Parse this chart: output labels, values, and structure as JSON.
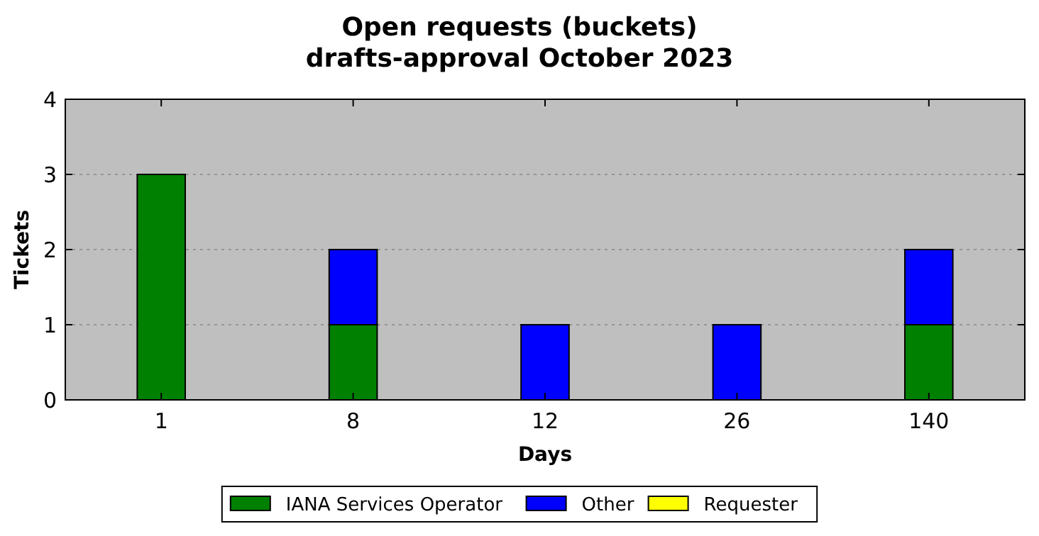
{
  "chart_data": {
    "type": "bar",
    "title": "Open requests (buckets)",
    "subtitle": "drafts-approval October 2023",
    "xlabel": "Days",
    "ylabel": "Tickets",
    "categories": [
      "1",
      "8",
      "12",
      "26",
      "140"
    ],
    "stacked": true,
    "series": [
      {
        "name": "IANA Services Operator",
        "color": "#008000",
        "values": [
          3,
          1,
          0,
          0,
          1
        ]
      },
      {
        "name": "Other",
        "color": "#0000ff",
        "values": [
          0,
          1,
          1,
          1,
          1
        ]
      },
      {
        "name": "Requester",
        "color": "#ffff00",
        "values": [
          0,
          0,
          0,
          0,
          0
        ]
      }
    ],
    "ylim": [
      0,
      4
    ],
    "yticks": [
      0,
      1,
      2,
      3,
      4
    ],
    "grid": "y",
    "legend": "bottom"
  }
}
